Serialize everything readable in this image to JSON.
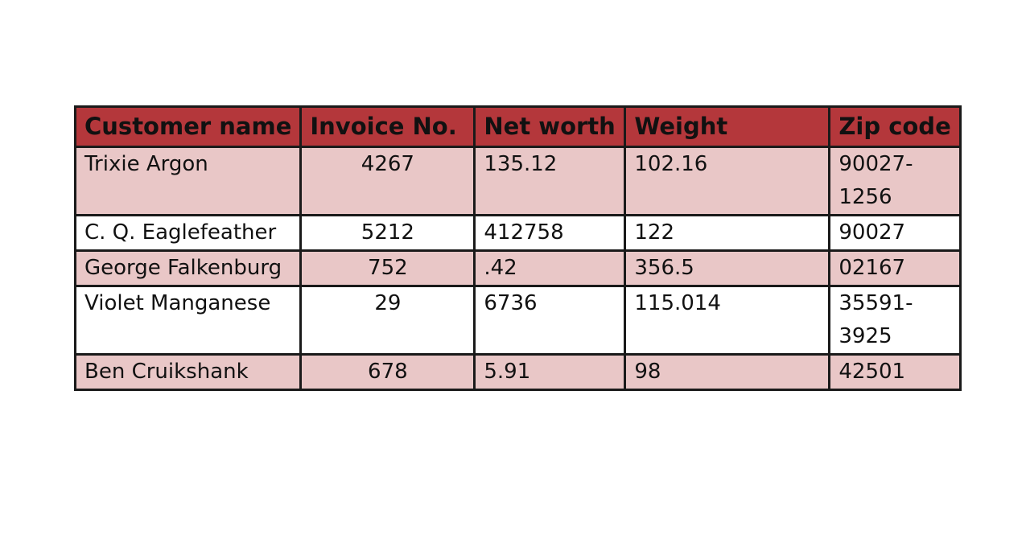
{
  "table": {
    "columns": [
      "Customer name",
      "Invoice No.",
      "Net worth",
      "Weight",
      "Zip code"
    ],
    "rows": [
      {
        "name": "Trixie Argon",
        "invoice": "4267",
        "net_worth": "135.12",
        "weight": "102.16",
        "zip": "90027-1256"
      },
      {
        "name": "C. Q. Eaglefeather",
        "invoice": "5212",
        "net_worth": "412758",
        "weight": "122",
        "zip": "90027"
      },
      {
        "name": "George Falkenburg",
        "invoice": "752",
        "net_worth": ".42",
        "weight": "356.5",
        "zip": "02167"
      },
      {
        "name": "Violet Manganese",
        "invoice": "29",
        "net_worth": "6736",
        "weight": "115.014",
        "zip": "35591-3925"
      },
      {
        "name": "Ben Cruikshank",
        "invoice": "678",
        "net_worth": "5.91",
        "weight": "98",
        "zip": "42501"
      }
    ]
  },
  "colors": {
    "header_bg": "#b4373b",
    "shaded_row_bg": "#e9c7c7",
    "border": "#1a1a1a"
  }
}
